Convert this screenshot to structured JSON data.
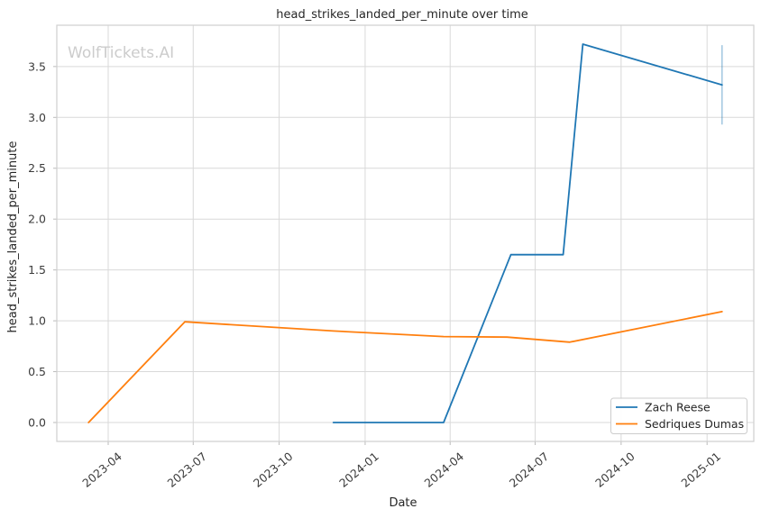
{
  "watermark": {
    "text": "WolfTickets.AI",
    "color": "#cccccc"
  },
  "chart_data": {
    "type": "line",
    "title": "head_strikes_landed_per_minute over time",
    "xlabel": "Date",
    "ylabel": "head_strikes_landed_per_minute",
    "grid": true,
    "background": "#ffffff",
    "grid_color": "#d9d9d9",
    "text_color": "#262626",
    "legend_position": "lower right",
    "x_domain": [
      "2023-02-05",
      "2025-02-20"
    ],
    "y_domain": [
      -0.186,
      3.906
    ],
    "x_ticks": [
      {
        "label": "2023-04",
        "date": "2023-04-01"
      },
      {
        "label": "2023-07",
        "date": "2023-07-01"
      },
      {
        "label": "2023-10",
        "date": "2023-10-01"
      },
      {
        "label": "2024-01",
        "date": "2024-01-01"
      },
      {
        "label": "2024-04",
        "date": "2024-04-01"
      },
      {
        "label": "2024-07",
        "date": "2024-07-01"
      },
      {
        "label": "2024-10",
        "date": "2024-10-01"
      },
      {
        "label": "2025-01",
        "date": "2025-01-01"
      }
    ],
    "y_ticks": [
      {
        "label": "0.0",
        "value": 0.0
      },
      {
        "label": "0.5",
        "value": 0.5
      },
      {
        "label": "1.0",
        "value": 1.0
      },
      {
        "label": "1.5",
        "value": 1.5
      },
      {
        "label": "2.0",
        "value": 2.0
      },
      {
        "label": "2.5",
        "value": 2.5
      },
      {
        "label": "3.0",
        "value": 3.0
      },
      {
        "label": "3.5",
        "value": 3.5
      }
    ],
    "series": [
      {
        "name": "Zach Reese",
        "color": "#1f77b4",
        "points": [
          {
            "date": "2023-11-28",
            "value": 0.0
          },
          {
            "date": "2024-03-25",
            "value": 0.0
          },
          {
            "date": "2024-06-05",
            "value": 1.65
          },
          {
            "date": "2024-07-31",
            "value": 1.65
          },
          {
            "date": "2024-08-21",
            "value": 3.72
          },
          {
            "date": "2025-01-17",
            "value": 3.32
          }
        ],
        "error_bars": [
          {
            "date": "2025-01-17",
            "value": 3.32,
            "plus_minus": 0.39
          }
        ]
      },
      {
        "name": "Sedriques Dumas",
        "color": "#ff7f0e",
        "points": [
          {
            "date": "2023-03-11",
            "value": 0.0
          },
          {
            "date": "2023-06-22",
            "value": 0.99
          },
          {
            "date": "2023-11-28",
            "value": 0.9
          },
          {
            "date": "2024-03-25",
            "value": 0.845
          },
          {
            "date": "2024-06-01",
            "value": 0.84
          },
          {
            "date": "2024-08-07",
            "value": 0.79
          },
          {
            "date": "2025-01-17",
            "value": 1.09
          }
        ],
        "error_bars": []
      }
    ]
  }
}
